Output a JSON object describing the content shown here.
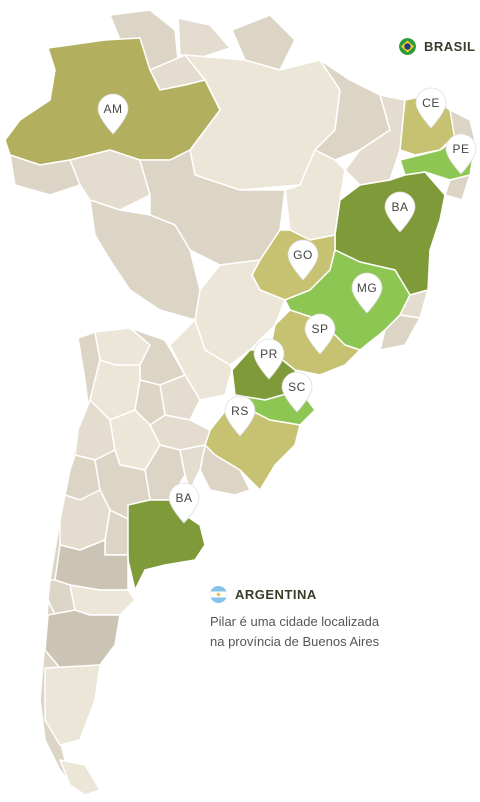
{
  "countries": {
    "brasil": {
      "label": "BRASIL",
      "flag_icon": "brazil-flag-icon"
    },
    "argentina": {
      "label": "ARGENTINA",
      "flag_icon": "argentina-flag-icon",
      "note_line1": "Pilar é uma cidade localizada",
      "note_line2": "na província de Buenos Aires"
    }
  },
  "markers": [
    {
      "code": "AM"
    },
    {
      "code": "CE"
    },
    {
      "code": "PE"
    },
    {
      "code": "BA"
    },
    {
      "code": "GO"
    },
    {
      "code": "MG"
    },
    {
      "code": "SP"
    },
    {
      "code": "PR"
    },
    {
      "code": "SC"
    },
    {
      "code": "RS"
    },
    {
      "code": "BA"
    }
  ],
  "colors": {
    "land": "#ece6d8",
    "land_mid": "#dcd5c6",
    "land_dark": "#cbc4b5",
    "olive_light": "#c6c272",
    "olive": "#b2b05e",
    "olive_dark": "#7f9a38",
    "green_bright": "#8ec653"
  }
}
